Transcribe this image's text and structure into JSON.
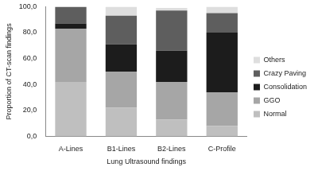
{
  "chart_data": {
    "type": "bar",
    "x_label": "Lung Ultrasound findings",
    "y_label": "Proportion of CT-scan findings",
    "categories": [
      "A-Lines",
      "B1-Lines",
      "B2-Lines",
      "C-Profile"
    ],
    "series": [
      {
        "name": "Normal",
        "color": "#bfbfbf",
        "values": [
          42,
          22,
          13,
          8
        ]
      },
      {
        "name": "GGO",
        "color": "#a6a6a6",
        "values": [
          41,
          28,
          29,
          26
        ]
      },
      {
        "name": "Consolidation",
        "color": "#1c1c1c",
        "values": [
          4,
          21,
          24,
          46
        ]
      },
      {
        "name": "Crazy Paving",
        "color": "#5e5e5e",
        "values": [
          13,
          22,
          31,
          15
        ]
      },
      {
        "name": "Others",
        "color": "#dedede",
        "values": [
          0,
          7,
          2,
          5
        ]
      }
    ],
    "ylim": [
      0,
      100
    ],
    "yticks": [
      {
        "value": 0,
        "label": "0,0"
      },
      {
        "value": 20,
        "label": "20,0"
      },
      {
        "value": 40,
        "label": "40,0"
      },
      {
        "value": 60,
        "label": "60,0"
      },
      {
        "value": 80,
        "label": "80,0"
      },
      {
        "value": 100,
        "label": "100,0"
      }
    ],
    "stacked": true,
    "grid": false,
    "legend": "right"
  }
}
